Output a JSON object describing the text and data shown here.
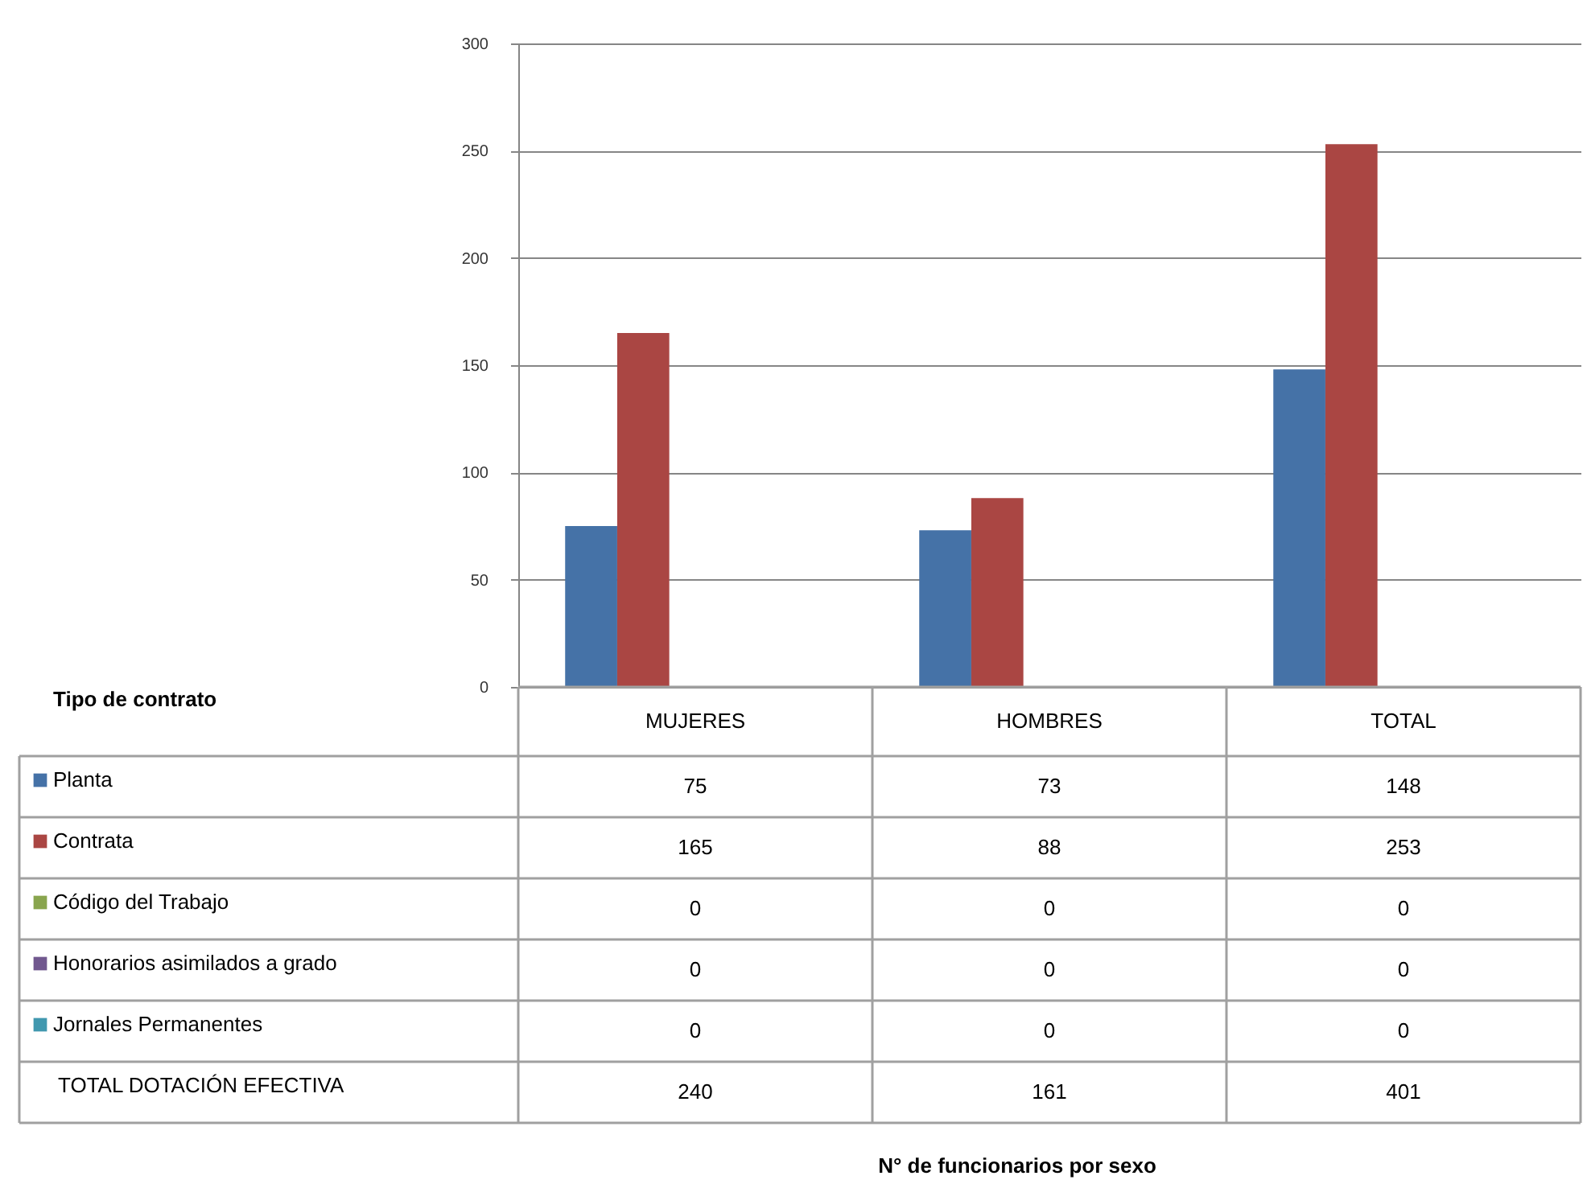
{
  "chart_data": {
    "type": "bar",
    "legend_title": "Tipo de contrato",
    "categories": [
      "MUJERES",
      "HOMBRES",
      "TOTAL"
    ],
    "series": [
      {
        "name": "Planta",
        "color": "#4572a7",
        "values": [
          75,
          73,
          148
        ]
      },
      {
        "name": "Contrata",
        "color": "#aa4643",
        "values": [
          165,
          88,
          253
        ]
      },
      {
        "name": "Código del Trabajo",
        "color": "#89a54e",
        "values": [
          0,
          0,
          0
        ]
      },
      {
        "name": "Honorarios asimilados a grado",
        "color": "#71588f",
        "values": [
          0,
          0,
          0
        ]
      },
      {
        "name": "Jornales Permanentes",
        "color": "#4198af",
        "values": [
          0,
          0,
          0
        ]
      }
    ],
    "ylim": [
      0,
      300
    ],
    "yticks": [
      0,
      50,
      100,
      150,
      200,
      250,
      300
    ],
    "grid": "y",
    "legend": "bottom",
    "data_labels": true,
    "annotations": [
      "TOTAL DOTACIÓN EFECTIVA",
      "240",
      "161",
      "401",
      "N° de funcionarios por sexo"
    ]
  }
}
